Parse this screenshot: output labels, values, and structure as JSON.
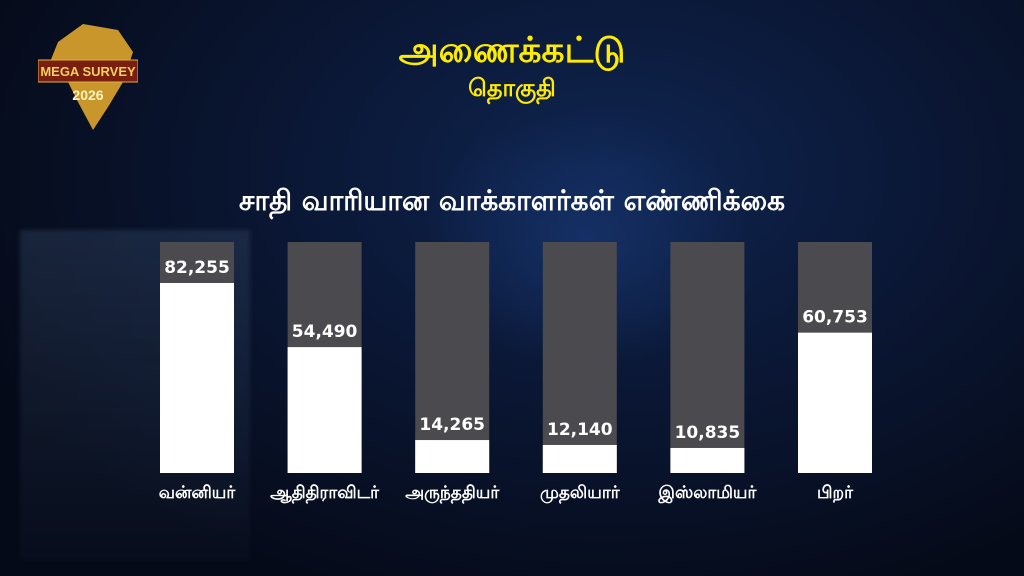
{
  "logo": {
    "line1": "MEGA SURVEY",
    "line2": "2026"
  },
  "header": {
    "title": "அணைக்கட்டு",
    "subtitle": "தொகுதி"
  },
  "chart_data": {
    "type": "bar",
    "title": "சாதி வாரியான வாக்காளர்கள்  எண்ணிக்கை",
    "categories": [
      "வன்னியர்",
      "ஆதிதிராவிடர்",
      "அருந்ததியர்",
      "முதலியார்",
      "இஸ்லாமியர்",
      "பிறர்"
    ],
    "values": [
      82255,
      54490,
      14265,
      12140,
      10835,
      60753
    ],
    "data_labels": [
      "82,255",
      "54,490",
      "14,265",
      "12,140",
      "10,835",
      "60,753"
    ],
    "ylim": [
      0,
      100000
    ],
    "grid": false,
    "colors": {
      "bar": "#ffffff",
      "track": "#4a4a4f",
      "label_text": "#ffffff",
      "category_text": "#ffffff",
      "title": "#ffeb00"
    }
  }
}
